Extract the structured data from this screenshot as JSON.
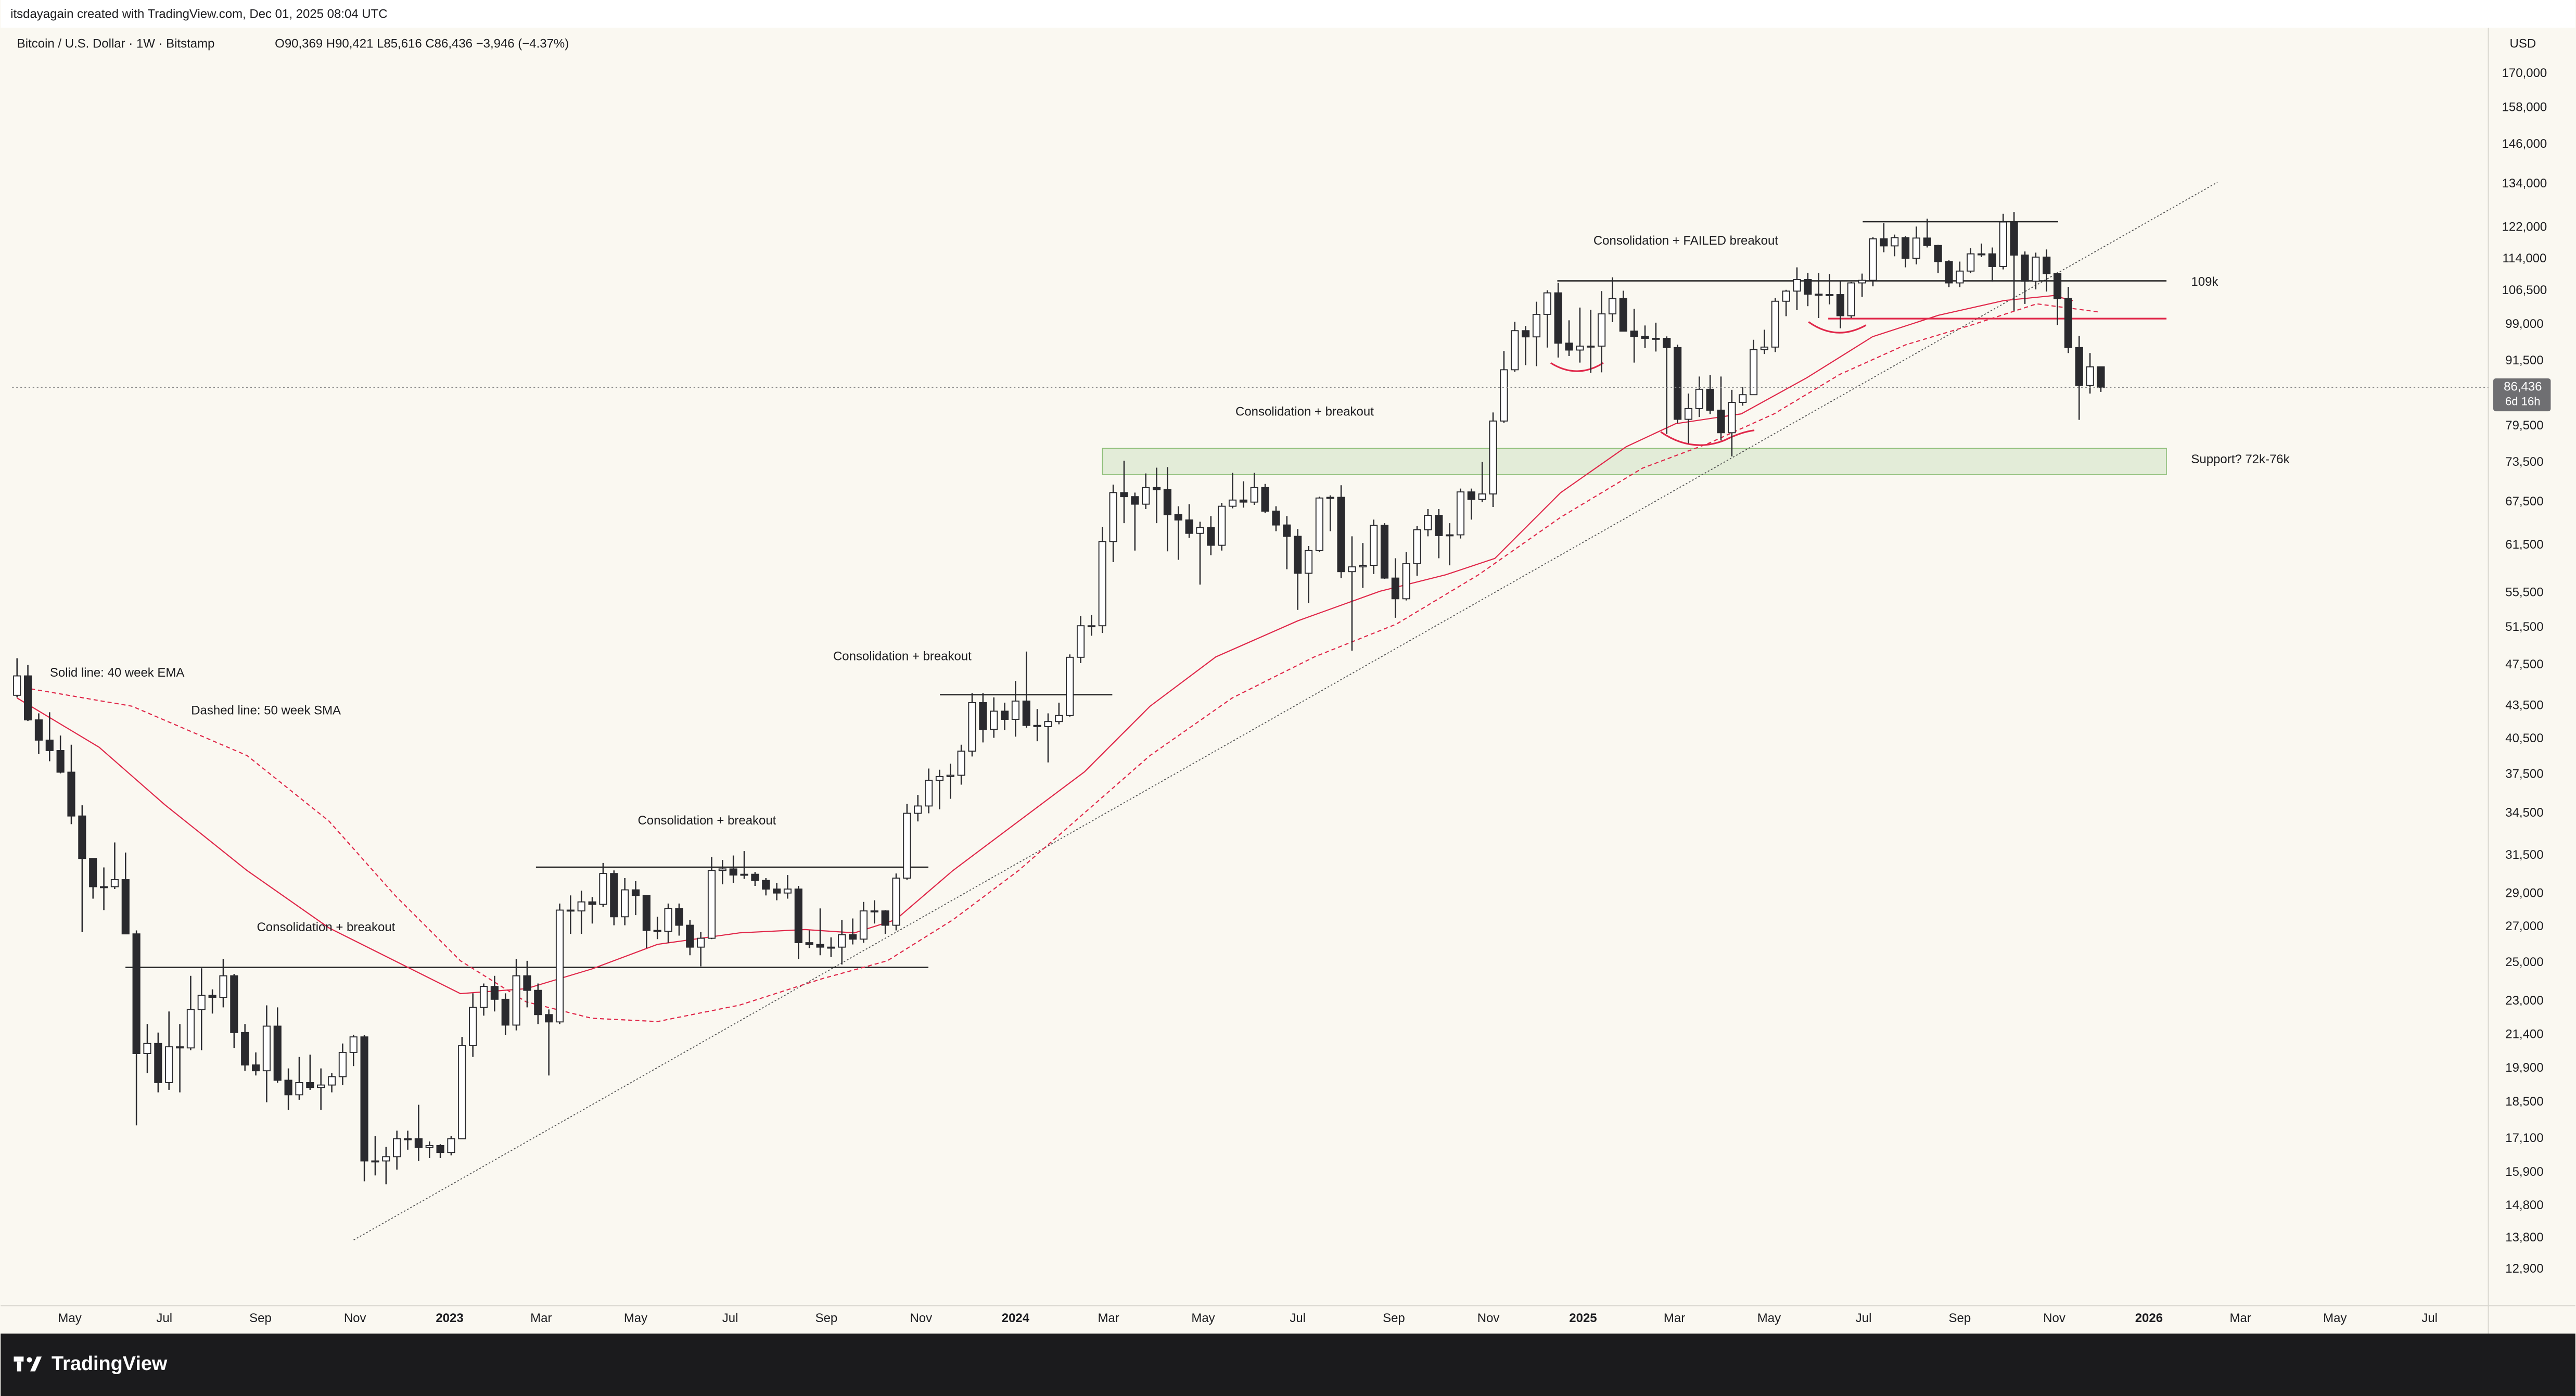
{
  "header": "itsdayagain created with TradingView.com, Dec 01, 2025 08:04 UTC",
  "footer": "TradingView",
  "chart_data": {
    "type": "candlestick",
    "title": "Bitcoin / U.S. Dollar · 1W · Bitstamp",
    "quote": "O90,369 H90,421 L85,616 C86,436 −3,946 (−4.37%)",
    "currency": "USD",
    "log_scale": true,
    "grid": false,
    "up_color": "#ffffff",
    "down_color": "#2a2a2e",
    "price_label": {
      "value": 86436,
      "label": "86,436"
    },
    "countdown": "6d 16h",
    "annotations": [
      "Solid line: 40 week EMA",
      "Dashed line: 50 week SMA",
      "Consolidation + breakout",
      "Consolidation + breakout",
      "Consolidation + breakout",
      "Consolidation + breakout",
      "Consolidation + FAILED breakout",
      "109k",
      "Support? 72k-76k"
    ],
    "xlim": [
      -0.45,
      227.7
    ],
    "xticks": [
      {
        "value": 4.86,
        "label": "May"
      },
      {
        "value": 13.57,
        "label": "Jul"
      },
      {
        "value": 22.43,
        "label": "Sep"
      },
      {
        "value": 31.14,
        "label": "Nov"
      },
      {
        "value": 39.86,
        "label": "2023"
      },
      {
        "value": 48.29,
        "label": "Mar"
      },
      {
        "value": 57,
        "label": "May"
      },
      {
        "value": 65.71,
        "label": "Jul"
      },
      {
        "value": 74.57,
        "label": "Sep"
      },
      {
        "value": 83.29,
        "label": "Nov"
      },
      {
        "value": 92,
        "label": "2024"
      },
      {
        "value": 100.57,
        "label": "Mar"
      },
      {
        "value": 109.29,
        "label": "May"
      },
      {
        "value": 118,
        "label": "Jul"
      },
      {
        "value": 126.86,
        "label": "Sep"
      },
      {
        "value": 135.57,
        "label": "Nov"
      },
      {
        "value": 144.29,
        "label": "2025"
      },
      {
        "value": 152.71,
        "label": "Mar"
      },
      {
        "value": 161.43,
        "label": "May"
      },
      {
        "value": 170.14,
        "label": "Jul"
      },
      {
        "value": 179,
        "label": "Sep"
      },
      {
        "value": 187.71,
        "label": "Nov"
      },
      {
        "value": 196.43,
        "label": "2026"
      },
      {
        "value": 204.86,
        "label": "Mar"
      },
      {
        "value": 213.57,
        "label": "May"
      },
      {
        "value": 222.29,
        "label": "Jul"
      }
    ],
    "ylim": [
      11930,
      187700
    ],
    "yticks": [
      {
        "value": 170000,
        "label": "170,000"
      },
      {
        "value": 158000,
        "label": "158,000"
      },
      {
        "value": 146000,
        "label": "146,000"
      },
      {
        "value": 134000,
        "label": "134,000"
      },
      {
        "value": 122000,
        "label": "122,000"
      },
      {
        "value": 114000,
        "label": "114,000"
      },
      {
        "value": 106500,
        "label": "106,500"
      },
      {
        "value": 99000,
        "label": "99,000"
      },
      {
        "value": 91500,
        "label": "91,500"
      },
      {
        "value": 79500,
        "label": "79,500"
      },
      {
        "value": 73500,
        "label": "73,500"
      },
      {
        "value": 67500,
        "label": "67,500"
      },
      {
        "value": 61500,
        "label": "61,500"
      },
      {
        "value": 55500,
        "label": "55,500"
      },
      {
        "value": 51500,
        "label": "51,500"
      },
      {
        "value": 47500,
        "label": "47,500"
      },
      {
        "value": 43500,
        "label": "43,500"
      },
      {
        "value": 40500,
        "label": "40,500"
      },
      {
        "value": 37500,
        "label": "37,500"
      },
      {
        "value": 34500,
        "label": "34,500"
      },
      {
        "value": 31500,
        "label": "31,500"
      },
      {
        "value": 29000,
        "label": "29,000"
      },
      {
        "value": 27000,
        "label": "27,000"
      },
      {
        "value": 25000,
        "label": "25,000"
      },
      {
        "value": 23000,
        "label": "23,000"
      },
      {
        "value": 21400,
        "label": "21,400"
      },
      {
        "value": 19900,
        "label": "19,900"
      },
      {
        "value": 18500,
        "label": "18,500"
      },
      {
        "value": 17100,
        "label": "17,100"
      },
      {
        "value": 15900,
        "label": "15,900"
      },
      {
        "value": 14800,
        "label": "14,800"
      },
      {
        "value": 13800,
        "label": "13,800"
      },
      {
        "value": 12900,
        "label": "12,900"
      }
    ],
    "open": [
      44500,
      46400,
      42200,
      40400,
      39500,
      37700,
      34300,
      31300,
      29450,
      29450,
      29900,
      26600,
      20550,
      21000,
      19300,
      20850,
      20800,
      22600,
      23300,
      23200,
      24300,
      21500,
      20050,
      19800,
      21800,
      19400,
      18800,
      19300,
      19100,
      19200,
      19550,
      20600,
      21300,
      16300,
      16300,
      16450,
      17100,
      17100,
      16780,
      16850,
      16600,
      17100,
      20900,
      22700,
      23750,
      23100,
      21850,
      24300,
      23550,
      22350,
      22000,
      28000,
      27950,
      28500,
      28350,
      30300,
      27600,
      29250,
      28900,
      26800,
      26750,
      28100,
      27100,
      25850,
      26350,
      30500,
      30600,
      30200,
      30250,
      29850,
      29300,
      29050,
      29300,
      26100,
      26000,
      25850,
      25850,
      26550,
      26300,
      27950,
      27950,
      27100,
      30000,
      34500,
      35050,
      37050,
      37350,
      37450,
      39450,
      43800,
      41350,
      43000,
      42250,
      43950,
      41700,
      41600,
      42050,
      42600,
      48300,
      51700,
      51700,
      62000,
      68900,
      68300,
      67200,
      69650,
      69350,
      65700,
      64950,
      63100,
      63900,
      61500,
      66900,
      67800,
      67500,
      69650,
      66200,
      64250,
      62700,
      57900,
      60800,
      68100,
      68200,
      58100,
      58700,
      58900,
      64200,
      57300,
      54800,
      59100,
      63600,
      65600,
      62800,
      62900,
      69000,
      67900,
      68700,
      80400,
      89800,
      97700,
      96400,
      101200,
      106000,
      95100,
      93700,
      94500,
      94500,
      101300,
      104700,
      97600,
      96500,
      96100,
      96100,
      94200,
      80700,
      82600,
      86100,
      82300,
      78400,
      83700,
      85100,
      93800,
      94300,
      104100,
      106400,
      109100,
      105700,
      105500,
      105600,
      100900,
      108300,
      108900,
      119100,
      117300,
      119400,
      114200,
      119300,
      117400,
      113400,
      108300,
      111100,
      115300,
      115300,
      112200,
      123500,
      115000,
      108700,
      114500,
      110500,
      104700,
      94200,
      86800,
      90369
    ],
    "high": [
      48200,
      47500,
      42800,
      42900,
      40800,
      40000,
      35100,
      31300,
      30700,
      32400,
      31700,
      26800,
      21900,
      21500,
      22500,
      21900,
      24300,
      24700,
      23600,
      25200,
      24400,
      21900,
      20600,
      22800,
      22700,
      19900,
      20400,
      20500,
      19900,
      19700,
      21000,
      21400,
      21400,
      17200,
      16800,
      17400,
      17400,
      18400,
      17000,
      16900,
      17200,
      21300,
      23400,
      23900,
      24300,
      23400,
      25200,
      25100,
      23900,
      22600,
      28400,
      28900,
      29200,
      28800,
      31000,
      30500,
      30000,
      29800,
      28900,
      27600,
      28400,
      28400,
      27400,
      26700,
      31400,
      31200,
      31500,
      31800,
      30400,
      30000,
      29700,
      30200,
      29500,
      26800,
      28100,
      26400,
      27400,
      27500,
      28500,
      28600,
      28000,
      30300,
      35200,
      35900,
      38000,
      37900,
      38400,
      40000,
      44700,
      44700,
      44300,
      43800,
      45900,
      48900,
      43200,
      42800,
      43800,
      48600,
      52800,
      52900,
      64000,
      70100,
      73800,
      68900,
      71800,
      72700,
      72800,
      66900,
      67200,
      64700,
      65500,
      67400,
      71900,
      70600,
      71900,
      70200,
      66900,
      65500,
      63700,
      61400,
      68300,
      68500,
      70000,
      62700,
      61800,
      65000,
      64500,
      59800,
      60600,
      64100,
      66500,
      66500,
      64500,
      69500,
      69500,
      73600,
      81900,
      93500,
      99600,
      98700,
      104000,
      106600,
      108300,
      99900,
      102700,
      102200,
      106400,
      109600,
      106500,
      102400,
      98800,
      99400,
      96500,
      94800,
      85300,
      88500,
      88800,
      88500,
      86000,
      86500,
      95800,
      97900,
      104800,
      106700,
      112000,
      110700,
      110600,
      110400,
      108900,
      108500,
      110500,
      119500,
      123200,
      120200,
      119800,
      122300,
      124400,
      117600,
      113700,
      113400,
      116700,
      117900,
      116900,
      125700,
      126200,
      115900,
      115600,
      116400,
      110800,
      107400,
      96600,
      93100,
      90421
    ],
    "low": [
      44300,
      42100,
      39200,
      38600,
      37600,
      33700,
      26700,
      28700,
      28000,
      29300,
      26600,
      17600,
      19700,
      18900,
      19000,
      18900,
      20700,
      20700,
      22400,
      22700,
      20800,
      19800,
      19600,
      18500,
      19300,
      18200,
      18600,
      19000,
      18200,
      18900,
      19200,
      20000,
      15600,
      15800,
      15500,
      16000,
      16700,
      16300,
      16400,
      16400,
      16500,
      17100,
      20400,
      22300,
      22500,
      21400,
      21600,
      22700,
      21900,
      19600,
      21900,
      26600,
      26600,
      27200,
      28200,
      27100,
      27100,
      27700,
      25800,
      26300,
      26100,
      26500,
      25400,
      24800,
      26300,
      29600,
      29700,
      29950,
      29500,
      28900,
      28600,
      28700,
      25200,
      25800,
      25400,
      25300,
      24900,
      26000,
      26100,
      27200,
      26600,
      26800,
      29900,
      33900,
      34500,
      34800,
      35600,
      36700,
      39000,
      40200,
      40600,
      41300,
      40700,
      41500,
      40300,
      38500,
      41800,
      42500,
      47700,
      50600,
      50900,
      59300,
      64500,
      60800,
      66500,
      64500,
      60700,
      59600,
      62500,
      56500,
      60200,
      60800,
      66600,
      66700,
      67100,
      65900,
      63400,
      58400,
      53500,
      54300,
      60600,
      63400,
      57300,
      49000,
      56100,
      57800,
      57200,
      52600,
      54600,
      57600,
      62700,
      59800,
      58900,
      62400,
      65000,
      67500,
      66800,
      80100,
      89400,
      90700,
      90500,
      94200,
      92200,
      92500,
      91200,
      89200,
      89300,
      99500,
      97600,
      91200,
      94100,
      93400,
      78200,
      80000,
      76600,
      81100,
      81600,
      77100,
      74500,
      83100,
      85100,
      92900,
      93300,
      100800,
      102100,
      103000,
      100400,
      103400,
      98200,
      100400,
      105100,
      107500,
      115700,
      114700,
      112000,
      112700,
      116900,
      110600,
      107300,
      107300,
      110600,
      114500,
      108600,
      111500,
      102000,
      103500,
      106800,
      106300,
      98900,
      93100,
      80600,
      85300,
      85616
    ],
    "close": [
      46400,
      42200,
      40400,
      39500,
      37700,
      34300,
      31300,
      29450,
      29450,
      29900,
      26600,
      20550,
      21000,
      19300,
      20850,
      20800,
      22600,
      23300,
      23200,
      24300,
      21500,
      20050,
      19800,
      21800,
      19400,
      18800,
      19300,
      19100,
      19200,
      19550,
      20600,
      21300,
      16300,
      16300,
      16450,
      17100,
      17100,
      16780,
      16850,
      16600,
      17100,
      20900,
      22700,
      23750,
      23100,
      21850,
      24300,
      23550,
      22350,
      22000,
      28000,
      27950,
      28500,
      28350,
      30300,
      27600,
      29250,
      28900,
      26800,
      26750,
      28100,
      27100,
      25850,
      26350,
      30500,
      30600,
      30200,
      30250,
      29850,
      29300,
      29050,
      29300,
      26100,
      26000,
      25850,
      25850,
      26550,
      26300,
      27950,
      27950,
      27100,
      30000,
      34500,
      35050,
      37050,
      37350,
      37450,
      39450,
      43800,
      41350,
      43000,
      42250,
      43950,
      41700,
      41600,
      42050,
      42600,
      48300,
      51700,
      51700,
      62000,
      68900,
      68300,
      67200,
      69650,
      69350,
      65700,
      64950,
      63100,
      63900,
      61500,
      66900,
      67800,
      67500,
      69650,
      66200,
      64250,
      62700,
      57900,
      60800,
      68100,
      68200,
      58100,
      58700,
      58900,
      64200,
      57300,
      54800,
      59100,
      63600,
      65600,
      62800,
      62900,
      69000,
      67900,
      68700,
      80400,
      89800,
      97700,
      96400,
      101200,
      106000,
      95100,
      93700,
      94500,
      94500,
      101300,
      104700,
      97600,
      96500,
      96100,
      96100,
      94200,
      80700,
      82600,
      86100,
      82300,
      78400,
      83700,
      85100,
      93800,
      94300,
      104100,
      106400,
      109100,
      105700,
      105500,
      105600,
      100900,
      108300,
      108900,
      119100,
      117300,
      119400,
      114200,
      119300,
      117400,
      113400,
      108300,
      111100,
      115300,
      115300,
      112200,
      123500,
      115000,
      108700,
      114500,
      110500,
      104700,
      94200,
      86800,
      90369,
      86436
    ]
  }
}
